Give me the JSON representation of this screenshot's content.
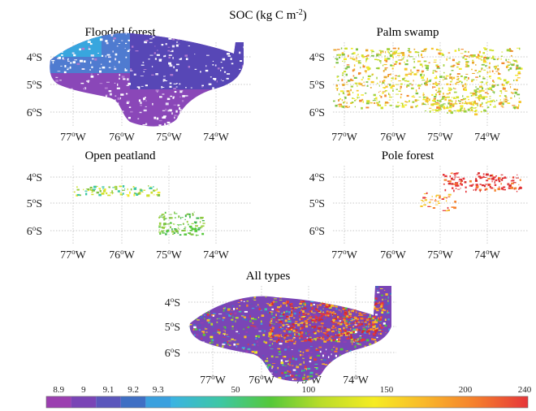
{
  "figure": {
    "title": "SOC (kg C m",
    "title_sup": "-2",
    "title_close": ")"
  },
  "panels": [
    {
      "id": "flooded-forest",
      "title": "Flooded forest",
      "style": "purple-blue"
    },
    {
      "id": "palm-swamp",
      "title": "Palm swamp",
      "style": "yellow-green"
    },
    {
      "id": "open-peatland",
      "title": "Open peatland",
      "style": "sparse-green"
    },
    {
      "id": "pole-forest",
      "title": "Pole forest",
      "style": "sparse-red"
    },
    {
      "id": "all-types",
      "title": "All types",
      "style": "mixed"
    }
  ],
  "axes": {
    "lon_ticks": [
      {
        "deg": "77",
        "hem": "W"
      },
      {
        "deg": "76",
        "hem": "W"
      },
      {
        "deg": "75",
        "hem": "W"
      },
      {
        "deg": "74",
        "hem": "W"
      }
    ],
    "lat_ticks": [
      {
        "deg": "4",
        "hem": "S"
      },
      {
        "deg": "5",
        "hem": "S"
      },
      {
        "deg": "6",
        "hem": "S"
      }
    ],
    "degree_symbol": "o"
  },
  "colorbar": {
    "discrete": [
      {
        "label": "8.9",
        "color": "#9b3fb0"
      },
      {
        "label": "9",
        "color": "#7a45b6"
      },
      {
        "label": "9.1",
        "color": "#5b56bc"
      },
      {
        "label": "9.2",
        "color": "#3f6fc4"
      },
      {
        "label": "9.3",
        "color": "#3aa0de"
      }
    ],
    "continuous_labels": [
      "50",
      "100",
      "150",
      "200",
      "240"
    ],
    "continuous_colors": [
      "#3bb3e4",
      "#3ec7a4",
      "#55c83a",
      "#b9dc2a",
      "#f6ec22",
      "#f9b82a",
      "#f5802c",
      "#e6363a"
    ]
  },
  "colors": {
    "grid": "#b7b7b7",
    "outline": "#c8c8c8",
    "axis_text": "#222222"
  }
}
